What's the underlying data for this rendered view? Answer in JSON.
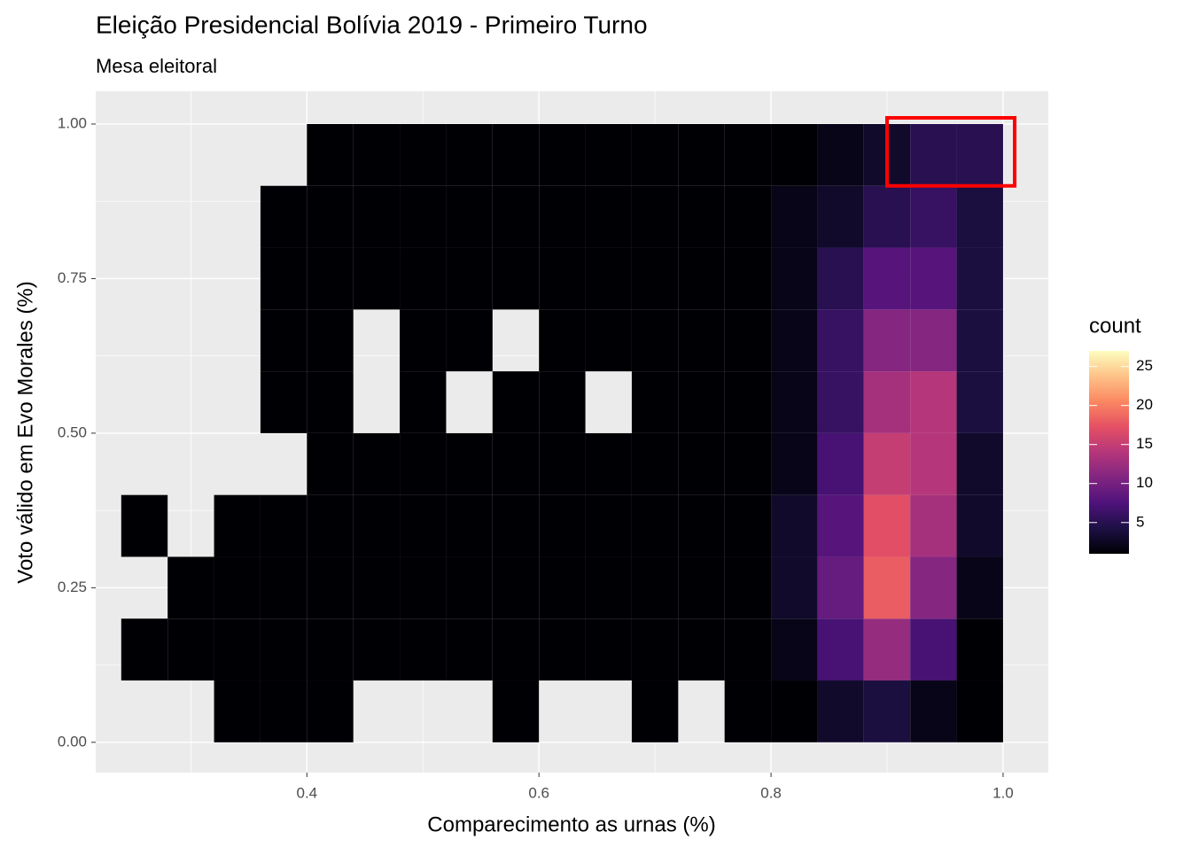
{
  "chart_data": {
    "type": "bin2d",
    "title": "Eleição Presidencial Bolívia 2019 - Primeiro Turno",
    "subtitle": "Mesa eleitoral",
    "x_label": "Comparecimento as urnas (%)",
    "y_label": "Voto válido em Evo Morales (%)",
    "xbins": [
      0.24,
      0.28,
      0.32,
      0.36,
      0.4,
      0.44,
      0.48,
      0.52,
      0.56,
      0.6,
      0.64,
      0.68,
      0.72,
      0.76,
      0.8,
      0.84,
      0.88,
      0.92,
      0.96,
      1.0
    ],
    "ybins": [
      0,
      0.1,
      0.2,
      0.3,
      0.4,
      0.5,
      0.6,
      0.7,
      0.8,
      0.9,
      1.0
    ],
    "values": [
      [
        0,
        0,
        1,
        1,
        1,
        0,
        0,
        0,
        1,
        0,
        0,
        1,
        0,
        1,
        1,
        3,
        4,
        2,
        1
      ],
      [
        1,
        1,
        1,
        1,
        1,
        1,
        1,
        1,
        1,
        1,
        1,
        1,
        1,
        1,
        2,
        7,
        12,
        7,
        1
      ],
      [
        0,
        1,
        1,
        1,
        1,
        1,
        1,
        1,
        1,
        1,
        1,
        1,
        1,
        1,
        3,
        9,
        18,
        11,
        2
      ],
      [
        1,
        0,
        1,
        1,
        1,
        1,
        1,
        1,
        1,
        1,
        1,
        1,
        1,
        1,
        3,
        8,
        17,
        13,
        3
      ],
      [
        0,
        0,
        0,
        0,
        1,
        1,
        1,
        1,
        1,
        1,
        1,
        1,
        1,
        1,
        2,
        7,
        15,
        14,
        3
      ],
      [
        0,
        0,
        0,
        1,
        1,
        0,
        1,
        0,
        1,
        1,
        0,
        1,
        1,
        1,
        2,
        6,
        13,
        14,
        4
      ],
      [
        0,
        0,
        0,
        1,
        1,
        0,
        1,
        1,
        0,
        1,
        1,
        1,
        1,
        1,
        2,
        6,
        11,
        11,
        4
      ],
      [
        0,
        0,
        0,
        1,
        1,
        1,
        1,
        1,
        1,
        1,
        1,
        1,
        1,
        1,
        2,
        5,
        8,
        8,
        4
      ],
      [
        0,
        0,
        0,
        1,
        1,
        1,
        1,
        1,
        1,
        1,
        1,
        1,
        1,
        1,
        2,
        3,
        5,
        6,
        4
      ],
      [
        0,
        0,
        0,
        0,
        1,
        1,
        1,
        1,
        1,
        1,
        1,
        1,
        1,
        1,
        1,
        2,
        3,
        5,
        5
      ]
    ],
    "xlim": [
      0.218,
      1.039
    ],
    "ylim": [
      -0.049,
      1.053
    ],
    "xticks": [
      0.4,
      0.6,
      0.8,
      {
        "value": 1,
        "label": "1.0"
      }
    ],
    "yticks": [
      {
        "value": 0,
        "label": "0.00"
      },
      {
        "value": 0.25,
        "label": "0.25"
      },
      {
        "value": 0.5,
        "label": "0.50"
      },
      {
        "value": 0.75,
        "label": "0.75"
      },
      {
        "value": 1,
        "label": "1.00"
      }
    ],
    "grid": true,
    "legend_title": "count",
    "colorbar_lim": [
      1,
      27
    ],
    "colorbar_ticks": [
      5,
      10,
      15,
      20,
      25
    ],
    "colorscale": [
      "#000004",
      "#1c1044",
      "#4f127b",
      "#812581",
      "#b5367a",
      "#e55064",
      "#fb8761",
      "#fec287",
      "#fcfdbf"
    ],
    "highlight": {
      "x": [
        0.9,
        1.01
      ],
      "y": [
        0.9,
        1.01
      ],
      "color": "#ff0000"
    }
  }
}
